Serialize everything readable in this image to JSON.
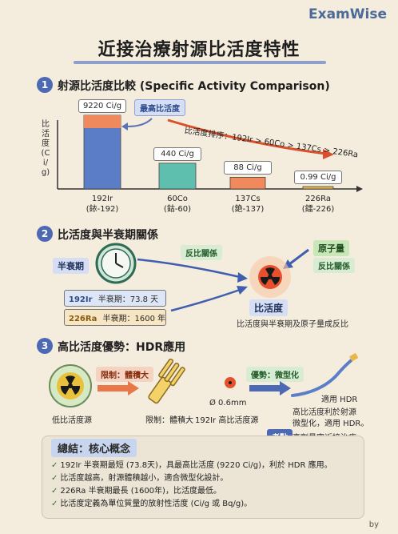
{
  "brand": "ExamWise",
  "title": "近接治療射源比活度特性",
  "section1": {
    "number": "1",
    "title": "射源比活度比較 (Specific Activity Comparison)",
    "ylabel": "比活度(Ci/g)",
    "highest_tag": "最高比活度",
    "ranking_text": "比活度排序：192Ir > 60Co > 137Cs > 226Ra"
  },
  "chart_data": {
    "type": "bar",
    "categories": [
      "192Ir (銥-192)",
      "60Co (鈷-60)",
      "137Cs (銫-137)",
      "226Ra (鐳-226)"
    ],
    "category_lines": [
      [
        "192Ir",
        "(銥-192)"
      ],
      [
        "60Co",
        "(鈷-60)"
      ],
      [
        "137Cs",
        "(銫-137)"
      ],
      [
        "226Ra",
        "(鐳-226)"
      ]
    ],
    "values": [
      9220,
      440,
      88,
      0.99
    ],
    "value_labels": [
      "9220 Ci/g",
      "440 Ci/g",
      "88 Ci/g",
      "0.99 Ci/g"
    ],
    "ylabel": "比活度(Ci/g)",
    "bar_colors": [
      "#5b7cc7",
      "#5fbfae",
      "#f08a5d",
      "#e6b84a"
    ],
    "title": ""
  },
  "section2": {
    "number": "2",
    "title": "比活度與半衰期關係",
    "half_life_label": "半衰期",
    "inverse_label_1": "反比關係",
    "atomic_mass_label": "原子量",
    "inverse_label_2": "反比關係",
    "ir_name": "192Ir",
    "ir_half": "半衰期：73.8 天",
    "ra_name": "226Ra",
    "ra_half": "半衰期：1600 年",
    "activity_label": "比活度",
    "caption": "比活度與半衰期及原子量成反比"
  },
  "section3": {
    "number": "3",
    "title": "高比活度優勢：HDR應用",
    "low_source": "低比活度源",
    "limit_tag": "限制：體積大",
    "limit_caption": "限制：體積大",
    "size_label": "Ø 0.6mm",
    "ir_source": "192Ir 高比活度源",
    "advantage_tag": "優勢：微型化",
    "hdr_label": "適用 HDR",
    "benefit_line1": "高比活度利於射源",
    "benefit_line2": "微型化，適用 HDR。",
    "exam_tag": "考點",
    "exam_text": "高劑量率近接治療"
  },
  "summary": {
    "title": "總結：核心概念",
    "items": [
      "192Ir 半衰期最短 (73.8天)，具最高比活度 (9220 Ci/g)，利於 HDR 應用。",
      "比活度越高，射源體積越小，適合微型化設計。",
      "226Ra 半衰期最長 (1600年)，比活度最低。",
      "比活度定義為單位質量的放射性活度 (Ci/g 或 Bq/g)。"
    ]
  },
  "footer": "by"
}
